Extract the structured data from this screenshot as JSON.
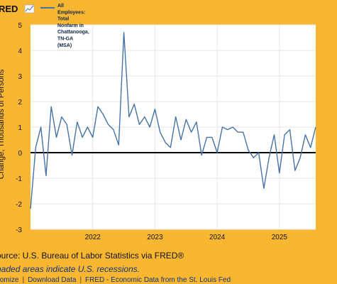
{
  "brand": {
    "text": "RED"
  },
  "chart_data": {
    "type": "line",
    "title": "",
    "ylabel": "Change, Thousands of Persons",
    "xlabel": "",
    "ylim": [
      -3,
      5
    ],
    "yticks": [
      -3,
      -2,
      -1,
      0,
      1,
      2,
      3,
      4,
      5
    ],
    "xtick_labels": [
      "2022",
      "2023",
      "2024",
      "2025"
    ],
    "x_range": [
      "2021-01",
      "2025-08"
    ],
    "grid": true,
    "zero_line": true,
    "legend_position": "top-left",
    "series": [
      {
        "name": "All Employees: Total Nonfarm in Chattanooga, TN-GA (MSA)",
        "color": "#4572a7",
        "x": [
          "2021-01",
          "2021-02",
          "2021-03",
          "2021-04",
          "2021-05",
          "2021-06",
          "2021-07",
          "2021-08",
          "2021-09",
          "2021-10",
          "2021-11",
          "2021-12",
          "2022-01",
          "2022-02",
          "2022-03",
          "2022-04",
          "2022-05",
          "2022-06",
          "2022-07",
          "2022-08",
          "2022-09",
          "2022-10",
          "2022-11",
          "2022-12",
          "2023-01",
          "2023-02",
          "2023-03",
          "2023-04",
          "2023-05",
          "2023-06",
          "2023-07",
          "2023-08",
          "2023-09",
          "2023-10",
          "2023-11",
          "2023-12",
          "2024-01",
          "2024-02",
          "2024-03",
          "2024-04",
          "2024-05",
          "2024-06",
          "2024-07",
          "2024-08",
          "2024-09",
          "2024-10",
          "2024-11",
          "2024-12",
          "2025-01",
          "2025-02",
          "2025-03",
          "2025-04",
          "2025-05",
          "2025-06",
          "2025-07",
          "2025-08"
        ],
        "values": [
          -2.2,
          0.2,
          1.0,
          -0.9,
          1.8,
          0.6,
          1.4,
          1.1,
          -0.1,
          1.2,
          0.6,
          1.0,
          0.6,
          1.8,
          1.5,
          1.1,
          0.9,
          0.3,
          4.7,
          1.4,
          1.9,
          1.1,
          1.4,
          1.0,
          1.7,
          0.8,
          0.4,
          0.2,
          1.4,
          0.5,
          1.3,
          0.8,
          1.2,
          -0.1,
          0.6,
          0.6,
          0.0,
          1.0,
          0.9,
          1.0,
          0.8,
          0.8,
          0.1,
          -0.2,
          0.0,
          -1.4,
          -0.2,
          0.7,
          -0.8,
          0.7,
          0.9,
          -0.7,
          -0.2,
          0.7,
          0.2,
          1.0
        ]
      }
    ]
  },
  "legend": {
    "lines": [
      "All",
      "Employees:",
      "Total",
      "Nonfarm in",
      "Chattanooga,",
      "TN-GA",
      "(MSA)"
    ]
  },
  "footer": {
    "source": "ource: U.S. Bureau of Labor Statistics via FRED®",
    "note": "haded areas indicate U.S. recessions.",
    "links": [
      "stomize",
      "Download Data",
      "FRED - Economic Data from the St. Louis Fed"
    ]
  },
  "colors": {
    "background": "#f9b731",
    "plot_area": "#ffffff",
    "grid": "#e6e6e6",
    "zero_line": "#000000",
    "series": "#4572a7"
  }
}
